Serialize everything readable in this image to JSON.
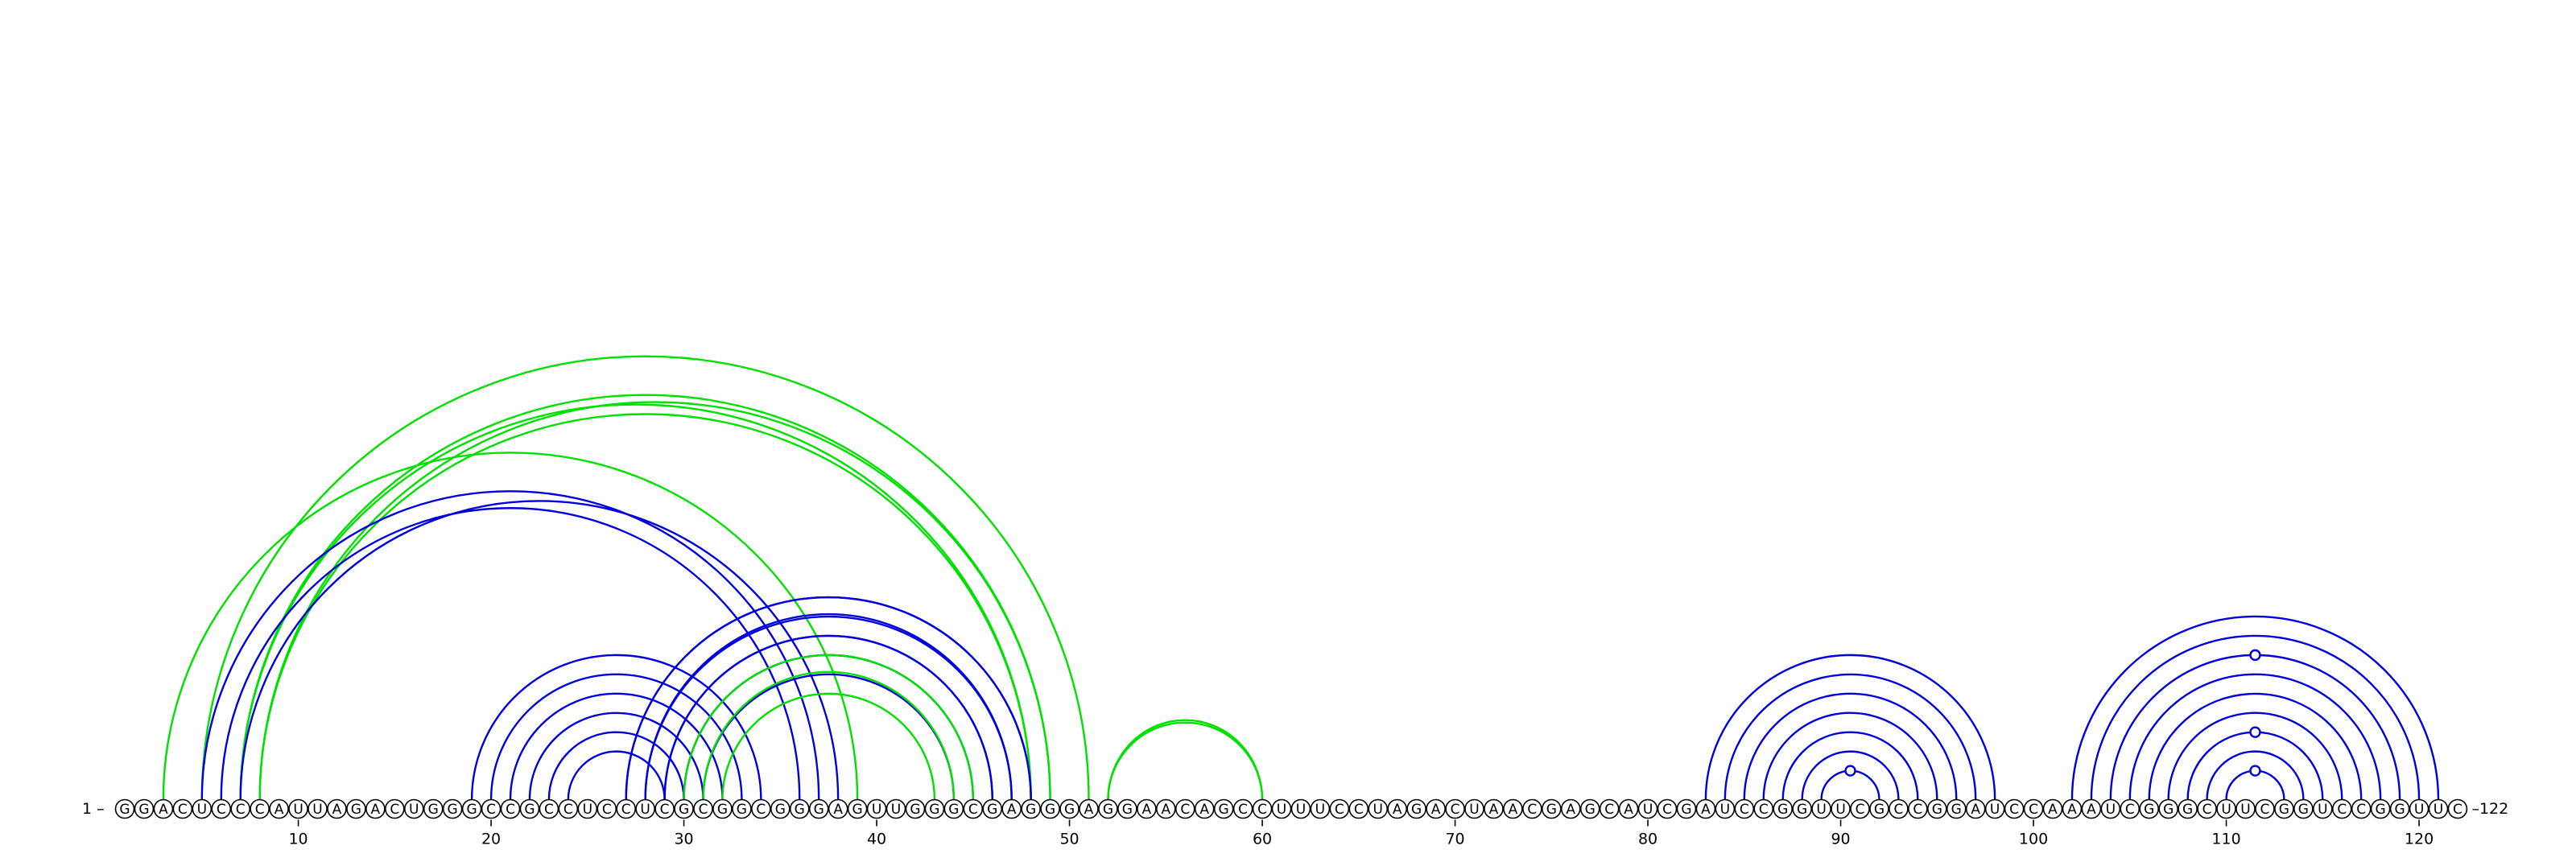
{
  "sequence": "GGACUCCCAUUAGACUGGGCCGCCUCCUCGCGGCGGGAGUUGGGCGAGGGAGGAACAGCCUUUCCUAGACUAACGAGCAUCGAUCCGGUUCGCCGGAUCCAAAUCGGGCUUCGGUCCGGUUC",
  "start_label": "1 –",
  "end_label": "–122",
  "ticks": [
    10,
    20,
    30,
    40,
    50,
    60,
    70,
    80,
    90,
    100,
    110,
    120
  ],
  "colors": {
    "blue": "#0000dd",
    "green": "#00e000"
  },
  "arcs": [
    {
      "color": "green",
      "pairs": [
        [
          3,
          39
        ],
        [
          5,
          51
        ],
        [
          7,
          49
        ],
        [
          8,
          48
        ]
      ]
    },
    {
      "color": "green",
      "pairs": [
        [
          7,
          48
        ],
        [
          8,
          49
        ]
      ]
    },
    {
      "color": "blue",
      "pairs": [
        [
          5,
          37
        ],
        [
          6,
          36
        ],
        [
          7,
          38
        ]
      ]
    },
    {
      "color": "blue",
      "pairs": [
        [
          19,
          34
        ],
        [
          20,
          33
        ],
        [
          21,
          32
        ],
        [
          22,
          31
        ],
        [
          23,
          30
        ],
        [
          24,
          29
        ]
      ]
    },
    {
      "color": "blue",
      "pairs": [
        [
          27,
          48
        ],
        [
          28,
          47
        ],
        [
          29,
          46
        ],
        [
          30,
          45
        ],
        [
          31,
          44
        ]
      ]
    },
    {
      "color": "blue",
      "pairs": [
        [
          27,
          48
        ],
        [
          28,
          47
        ],
        [
          29,
          46
        ]
      ]
    },
    {
      "color": "green",
      "pairs": [
        [
          30,
          45
        ],
        [
          31,
          44
        ],
        [
          32,
          43
        ]
      ]
    },
    {
      "color": "green",
      "pairs": [
        [
          52,
          60
        ],
        [
          52,
          60
        ]
      ]
    },
    {
      "color": "blue",
      "pairs": [
        [
          83,
          98
        ],
        [
          84,
          97
        ],
        [
          85,
          96
        ],
        [
          86,
          95
        ],
        [
          87,
          94
        ],
        [
          88,
          93
        ],
        [
          89,
          92
        ]
      ]
    },
    {
      "color": "blue",
      "pairs": [
        [
          102,
          121
        ],
        [
          103,
          120
        ],
        [
          104,
          119
        ],
        [
          105,
          118
        ],
        [
          106,
          117
        ],
        [
          107,
          116
        ],
        [
          108,
          115
        ],
        [
          109,
          114
        ],
        [
          110,
          113
        ]
      ]
    }
  ],
  "markers": [
    {
      "color": "blue",
      "pos": 90.5,
      "arc": [
        89,
        92
      ]
    },
    {
      "color": "blue",
      "pos": 111.5,
      "arc": [
        110,
        113
      ]
    },
    {
      "color": "blue",
      "pos": 111.5,
      "arc": [
        108,
        115
      ]
    },
    {
      "color": "blue",
      "pos": 111.5,
      "arc": [
        104,
        119
      ]
    }
  ]
}
